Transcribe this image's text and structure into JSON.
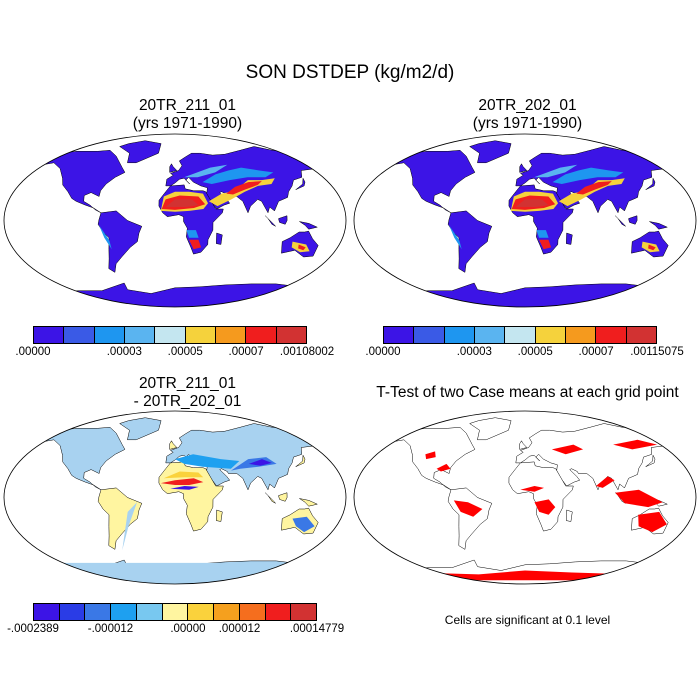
{
  "figure": {
    "title": "SON DSTDEP (kg/m2/d)"
  },
  "panels": [
    {
      "id": "panel-a",
      "title_line1": "20TR_211_01",
      "title_line2": "(yrs 1971-1990)",
      "colorbar": {
        "colors": [
          "#3c14e6",
          "#3a5ae6",
          "#1e96f0",
          "#5ab4f0",
          "#c4e6f0",
          "#f5d23c",
          "#f59a1e",
          "#f01e1e",
          "#d23232"
        ],
        "tick_labels": [
          ".00000",
          ".00003",
          ".00005",
          ".00007",
          ".00108002"
        ]
      }
    },
    {
      "id": "panel-b",
      "title_line1": "20TR_202_01",
      "title_line2": "(yrs 1971-1990)",
      "colorbar": {
        "colors": [
          "#3c14e6",
          "#3a5ae6",
          "#1e96f0",
          "#5ab4f0",
          "#c4e6f0",
          "#f5d23c",
          "#f59a1e",
          "#f01e1e",
          "#d23232"
        ],
        "tick_labels": [
          ".00000",
          ".00003",
          ".00005",
          ".00007",
          ".00115075"
        ]
      }
    },
    {
      "id": "panel-c",
      "title_line1": "20TR_211_01",
      "title_line2": "- 20TR_202_01",
      "colorbar": {
        "colors": [
          "#3c14e6",
          "#2a3ce6",
          "#3a78e6",
          "#1ea0f0",
          "#78c8f0",
          "#fff5a0",
          "#fad23c",
          "#f5a01e",
          "#f56e1e",
          "#f01e1e",
          "#d23232"
        ],
        "tick_labels": [
          "-.0002389",
          "-.000012",
          ".00000",
          ".000012",
          ".00014779"
        ]
      }
    },
    {
      "id": "panel-d",
      "title_line1": "T-Test of two Case means at each grid point",
      "note": "Cells are significant at 0.1 level"
    }
  ],
  "map_colors": {
    "ocean": "#ffffff",
    "land_low_a": "#3c14e6",
    "diff_land": "#fff5a0",
    "diff_pale": "#a8d2f0",
    "significant": "#ff0000"
  }
}
